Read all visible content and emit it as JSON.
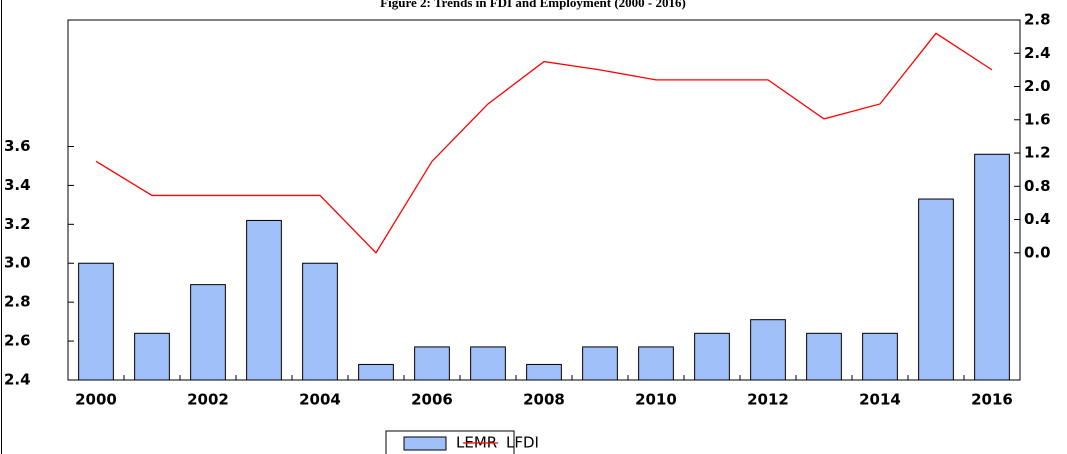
{
  "chart_data": {
    "type": "bar-line",
    "title": "Figure 2: Trends in FDI and Employment (2000 - 2016)",
    "categories": [
      "2000",
      null,
      "2002",
      null,
      "2004",
      null,
      "2006",
      null,
      "2008",
      null,
      "2010",
      null,
      "2012",
      null,
      "2014",
      null,
      "2016"
    ],
    "series": [
      {
        "name": "LEMR",
        "type": "bar",
        "color": "#9fc0f8",
        "values": [
          3.0,
          2.64,
          2.89,
          3.22,
          3.0,
          2.48,
          2.57,
          2.57,
          2.48,
          2.57,
          2.57,
          2.64,
          2.71,
          2.64,
          2.64,
          3.33,
          3.56
        ]
      },
      {
        "name": "LFDI",
        "type": "line",
        "axis": "y2",
        "color": "#ff0000",
        "values": [
          1.1,
          0.69,
          0.69,
          0.69,
          0.69,
          0.0,
          1.1,
          1.79,
          2.3,
          2.2,
          2.08,
          2.08,
          2.08,
          1.61,
          1.79,
          2.64,
          2.2
        ]
      }
    ],
    "ylim": [
      2.4,
      4.25
    ],
    "yticks": [
      2.4,
      2.6,
      2.8,
      {
        "value": 3,
        "label": "3.0"
      },
      3.2,
      3.4,
      3.6
    ],
    "y2lim": [
      -1.53,
      2.8
    ],
    "y2ticks": [
      {
        "value": 0,
        "label": "0.0"
      },
      0.4,
      0.8,
      1.2,
      1.6,
      {
        "value": 2,
        "label": "2.0"
      },
      2.4,
      2.8
    ]
  }
}
